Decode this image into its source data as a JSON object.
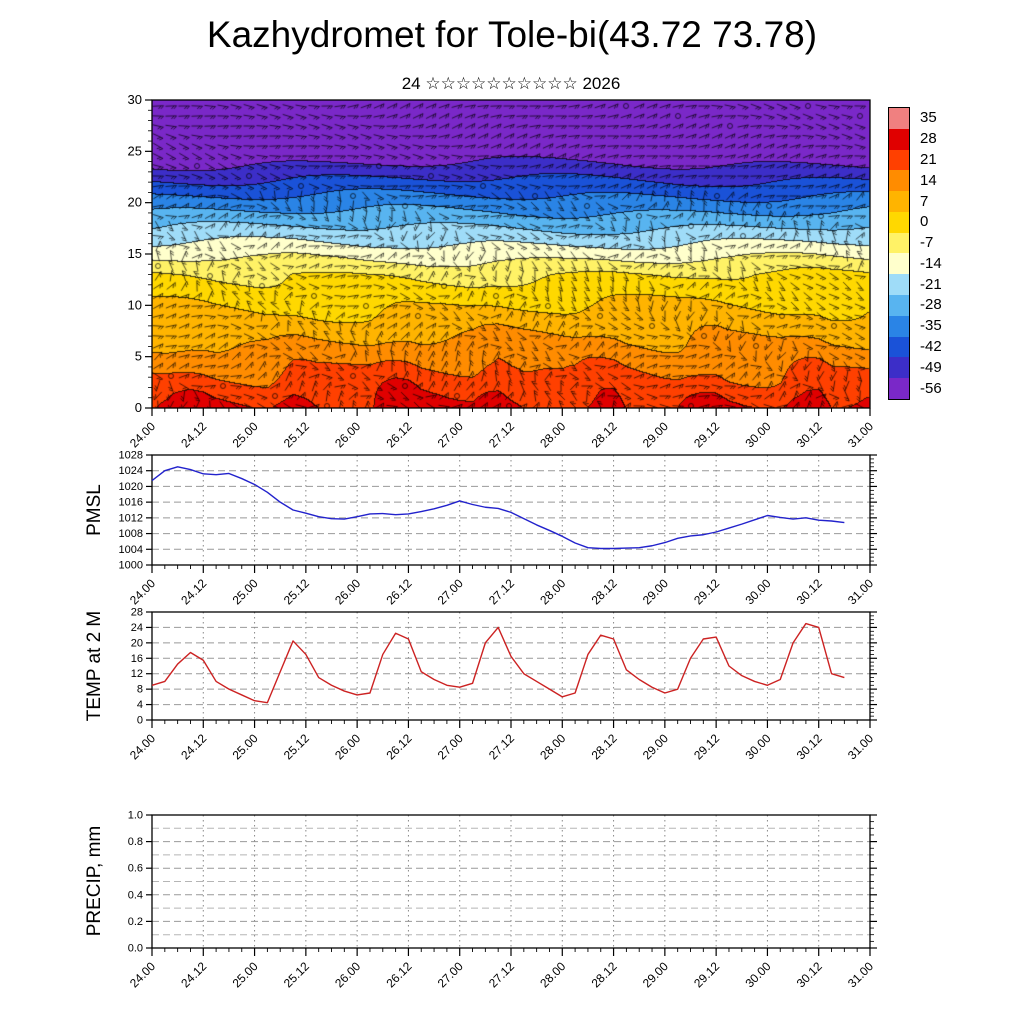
{
  "title": "Kazhydromet for Tole-bi(43.72 73.78)",
  "subtitle": "24 ☆☆☆☆☆☆☆☆☆☆ 2026",
  "x_axis": {
    "labels": [
      "24.00",
      "24.12",
      "25.00",
      "25.12",
      "26.00",
      "26.12",
      "27.00",
      "27.12",
      "28.00",
      "28.12",
      "29.00",
      "29.12",
      "30.00",
      "30.12",
      "31.00"
    ],
    "start_hour": 0,
    "end_hour": 168,
    "major_step_hours": 12,
    "minor_step_hours": 3
  },
  "colorbar": {
    "tick_labels": [
      "35",
      "28",
      "21",
      "14",
      "7",
      "0",
      "-7",
      "-14",
      "-21",
      "-28",
      "-35",
      "-42",
      "-49",
      "-56"
    ],
    "band_colors": [
      "#f08080",
      "#e00000",
      "#ff4000",
      "#ff8c00",
      "#ffb400",
      "#ffd800",
      "#fff266",
      "#ffffcc",
      "#9fdcf8",
      "#58b4f0",
      "#2a84e6",
      "#1a52d8",
      "#3c2ec8",
      "#7a28c8"
    ]
  },
  "panels": {
    "pmsl": {
      "ylabel": "PMSL"
    },
    "temp": {
      "ylabel": "TEMP at 2 M"
    },
    "precip": {
      "ylabel": "PRECIP, mm"
    }
  },
  "chart_data": [
    {
      "type": "heatmap",
      "name": "wind-temperature-cross-section",
      "ylim": [
        0,
        30
      ],
      "yticks": [
        0,
        5,
        10,
        15,
        20,
        25,
        30
      ],
      "levels": [
        35,
        28,
        21,
        14,
        7,
        0,
        -7,
        -14,
        -21,
        -28,
        -35,
        -42,
        -49,
        -56
      ],
      "description": "Filled temperature contours versus height with overlaid wind barbs: warm reds near the surface with diurnal heat plumes, yellow around 8-13, cream band near 14-15, light-to-dark blues 16-24, purple above 24."
    },
    {
      "type": "line",
      "name": "PMSL",
      "ylim": [
        1000,
        1028
      ],
      "yticks": [
        1000,
        1004,
        1008,
        1012,
        1016,
        1020,
        1024,
        1028
      ],
      "color": "#2222cc",
      "x_hours": [
        0,
        3,
        6,
        9,
        12,
        15,
        18,
        21,
        24,
        27,
        30,
        33,
        36,
        39,
        42,
        45,
        48,
        51,
        54,
        57,
        60,
        63,
        66,
        69,
        72,
        75,
        78,
        81,
        84,
        87,
        90,
        93,
        96,
        99,
        102,
        105,
        108,
        111,
        114,
        117,
        120,
        123,
        126,
        129,
        132,
        135,
        138,
        141,
        144,
        147,
        150,
        153,
        156,
        159,
        162
      ],
      "values": [
        1021.5,
        1024,
        1025,
        1024.3,
        1023.2,
        1023,
        1023.3,
        1022,
        1020.5,
        1018.5,
        1016,
        1014,
        1013.2,
        1012.3,
        1011.8,
        1011.7,
        1012.3,
        1013,
        1013.1,
        1012.8,
        1013,
        1013.6,
        1014.3,
        1015.2,
        1016.3,
        1015.4,
        1014.7,
        1014.4,
        1013.4,
        1011.8,
        1010.2,
        1008.8,
        1007.3,
        1005.6,
        1004.4,
        1004.2,
        1004.2,
        1004.3,
        1004.4,
        1004.9,
        1005.7,
        1006.8,
        1007.4,
        1007.7,
        1008.4,
        1009.4,
        1010.4,
        1011.5,
        1012.6,
        1012.1,
        1011.7,
        1012,
        1011.4,
        1011.2,
        1010.8
      ]
    },
    {
      "type": "line",
      "name": "TEMP at 2 M",
      "ylim": [
        0,
        28
      ],
      "yticks": [
        0,
        4,
        8,
        12,
        16,
        20,
        24,
        28
      ],
      "color": "#cc2222",
      "x_hours": [
        0,
        3,
        6,
        9,
        12,
        15,
        18,
        21,
        24,
        27,
        30,
        33,
        36,
        39,
        42,
        45,
        48,
        51,
        54,
        57,
        60,
        63,
        66,
        69,
        72,
        75,
        78,
        81,
        84,
        87,
        90,
        93,
        96,
        99,
        102,
        105,
        108,
        111,
        114,
        117,
        120,
        123,
        126,
        129,
        132,
        135,
        138,
        141,
        144,
        147,
        150,
        153,
        156,
        159,
        162
      ],
      "values": [
        9,
        10,
        14.5,
        17.5,
        15.5,
        10,
        8,
        6.5,
        5,
        4.5,
        12.5,
        20.5,
        17,
        11,
        9,
        7.5,
        6.5,
        7,
        17,
        22.5,
        21,
        12.5,
        10.5,
        9,
        8.5,
        9.5,
        20,
        24,
        16.5,
        12,
        10,
        8,
        6,
        7,
        17,
        22,
        21,
        13,
        10.5,
        8.5,
        7,
        8,
        16,
        21,
        21.5,
        14,
        11.5,
        10,
        9,
        10.5,
        20,
        25,
        24,
        12,
        11
      ]
    },
    {
      "type": "line",
      "name": "PRECIP, mm",
      "ylim": [
        0,
        1
      ],
      "yticks": [
        "0.0",
        "0.2",
        "0.4",
        "0.6",
        "0.8",
        "1.0"
      ],
      "color": "#008800",
      "x_hours": [],
      "values": []
    }
  ]
}
